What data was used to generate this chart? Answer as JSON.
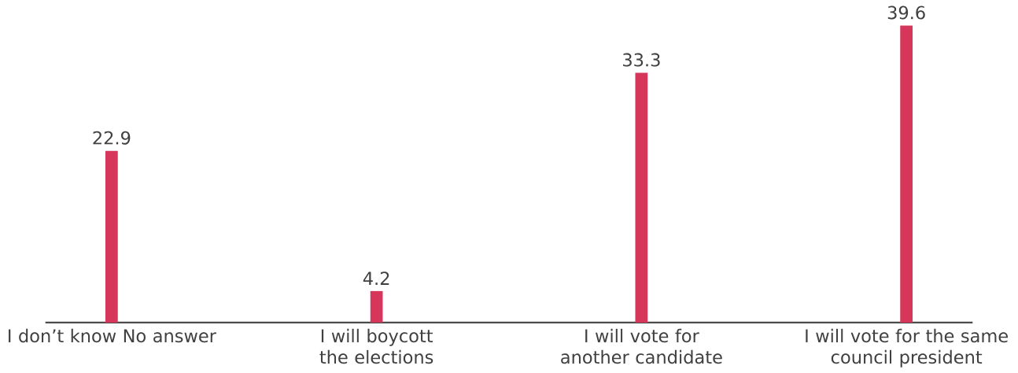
{
  "chart_data": {
    "type": "bar",
    "categories": [
      "I don’t know No answer",
      "I will boycott the elections",
      "I will vote for another candidate",
      "I will vote for the same council president"
    ],
    "values": [
      22.9,
      4.2,
      33.3,
      39.6
    ],
    "color": "#d6365a",
    "data_labels": true
  }
}
